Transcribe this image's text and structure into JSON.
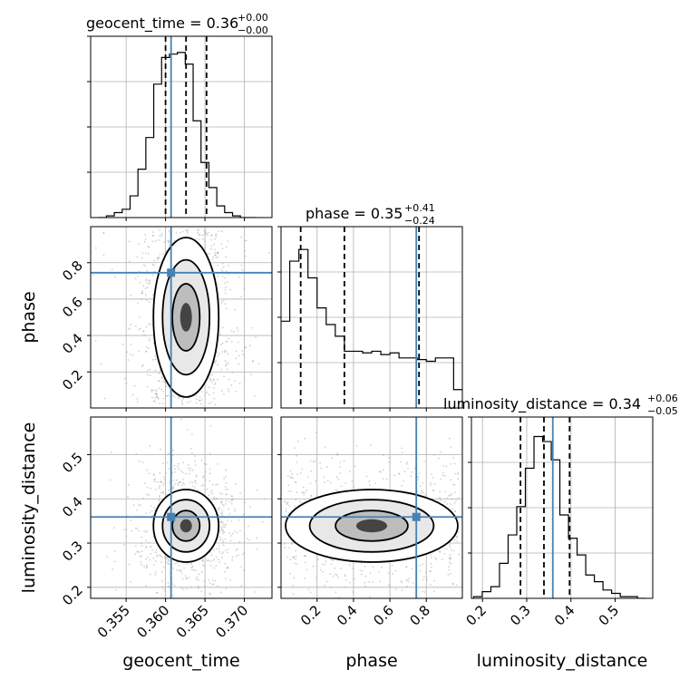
{
  "chart_data": {
    "type": "corner",
    "parameters": [
      "geocent_time",
      "phase",
      "luminosity_distance"
    ],
    "truth_color": "#4682b4",
    "grid": true,
    "titles": [
      {
        "param": "geocent_time",
        "text": "geocent_time = 0.36",
        "plus": "+0.00",
        "minus": "−0.00"
      },
      {
        "param": "phase",
        "text": "phase = 0.35",
        "plus": "+0.41",
        "minus": "−0.24"
      },
      {
        "param": "luminosity_distance",
        "text": "luminosity_distance = 0.34",
        "plus": "+0.06",
        "minus": "−0.05"
      }
    ],
    "axes": {
      "geocent_time": {
        "range": [
          0.3505,
          0.3735
        ],
        "ticks": [
          0.355,
          0.36,
          0.365,
          0.37
        ],
        "tick_labels": [
          "0.355",
          "0.360",
          "0.365",
          "0.370"
        ],
        "label": "geocent_time"
      },
      "phase": {
        "range": [
          0.002,
          0.998
        ],
        "ticks": [
          0.2,
          0.4,
          0.6,
          0.8
        ],
        "tick_labels": [
          "0.2",
          "0.4",
          "0.6",
          "0.8"
        ],
        "label": "phase"
      },
      "luminosity_distance": {
        "range": [
          0.175,
          0.585
        ],
        "ticks": [
          0.2,
          0.3,
          0.4,
          0.5
        ],
        "tick_labels": [
          "0.2",
          "0.3",
          "0.4",
          "0.5"
        ],
        "label": "luminosity_distance"
      }
    },
    "truths": {
      "geocent_time": 0.3607,
      "phase": 0.745,
      "luminosity_distance": 0.359
    },
    "quantiles": {
      "geocent_time": [
        0.36,
        0.3626,
        0.3652
      ],
      "phase": [
        0.11,
        0.35,
        0.76
      ],
      "luminosity_distance": [
        0.286,
        0.339,
        0.397
      ]
    },
    "histograms": {
      "geocent_time": {
        "range": [
          0.3515,
          0.3715
        ],
        "counts": [
          0.0,
          0.01,
          0.03,
          0.05,
          0.13,
          0.29,
          0.48,
          0.8,
          0.96,
          0.98,
          0.99,
          0.92,
          0.58,
          0.33,
          0.18,
          0.07,
          0.03,
          0.01,
          0.0,
          0.0
        ]
      },
      "phase": {
        "range": [
          0.0,
          1.0
        ],
        "counts": [
          0.52,
          0.88,
          0.95,
          0.78,
          0.6,
          0.5,
          0.43,
          0.34,
          0.34,
          0.33,
          0.34,
          0.32,
          0.33,
          0.3,
          0.3,
          0.29,
          0.28,
          0.3,
          0.3,
          0.11
        ]
      },
      "luminosity_distance": {
        "range": [
          0.18,
          0.57
        ],
        "counts": [
          0.01,
          0.04,
          0.07,
          0.21,
          0.38,
          0.55,
          0.78,
          0.97,
          0.94,
          0.83,
          0.5,
          0.36,
          0.26,
          0.14,
          0.1,
          0.05,
          0.03,
          0.01,
          0.01,
          0.0
        ]
      }
    },
    "y_axis_labels": [
      "phase",
      "luminosity_distance"
    ],
    "x_axis_labels": [
      "geocent_time",
      "phase",
      "luminosity_distance"
    ]
  }
}
